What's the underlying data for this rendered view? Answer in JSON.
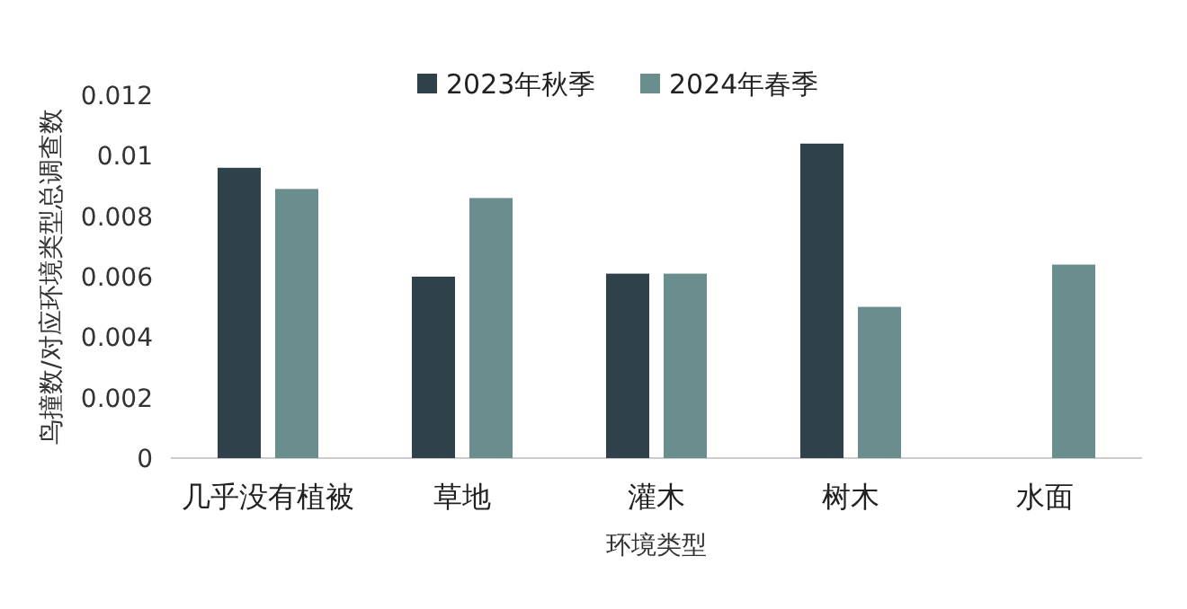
{
  "chart_data": {
    "type": "bar",
    "xlabel": "环境类型",
    "ylabel": "鸟撞数/对应环境类型总调查数",
    "categories": [
      "几乎没有植被",
      "草地",
      "灌木",
      "树木",
      "水面"
    ],
    "series": [
      {
        "name": "2023年秋季",
        "color": "#2f4249",
        "values": [
          0.0096,
          0.006,
          0.0061,
          0.0104,
          null
        ]
      },
      {
        "name": "2024年春季",
        "color": "#6a8e8e",
        "values": [
          0.0089,
          0.0086,
          0.0061,
          0.005,
          0.0064
        ]
      }
    ],
    "ylim": [
      0,
      0.012
    ],
    "yticks": [
      0,
      0.002,
      0.004,
      0.006,
      0.008,
      0.01,
      0.012
    ],
    "grid": false,
    "legend": "top"
  }
}
